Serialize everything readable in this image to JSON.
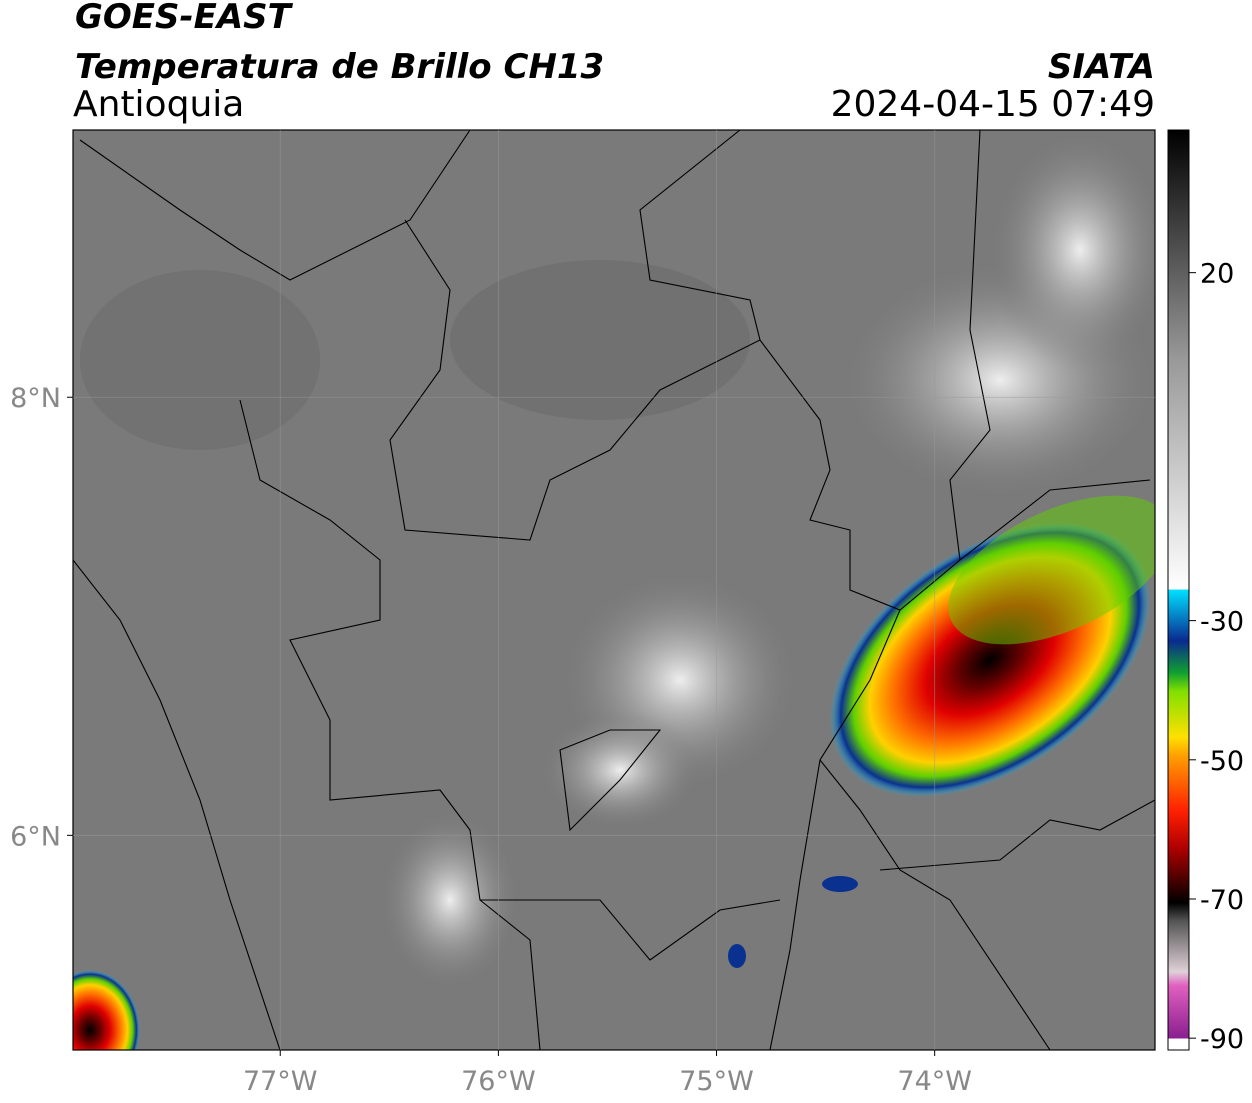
{
  "header": {
    "title": "GOES-EAST",
    "subtitle": "Temperatura de Brillo CH13",
    "region": "Antioquia",
    "source": "SIATA",
    "datetime": "2024-04-15 07:49"
  },
  "map": {
    "xlim": [
      -77.95,
      -72.99
    ],
    "ylim": [
      5.02,
      9.22
    ],
    "xticks": [
      {
        "value": -77,
        "label": "77°W"
      },
      {
        "value": -76,
        "label": "76°W"
      },
      {
        "value": -75,
        "label": "75°W"
      },
      {
        "value": -74,
        "label": "74°W"
      }
    ],
    "yticks": [
      {
        "value": 6,
        "label": "6°N"
      },
      {
        "value": 8,
        "label": "8°N"
      }
    ]
  },
  "colorbar": {
    "lim": [
      -91.7,
      40.5
    ],
    "ticks": [
      20,
      -30,
      -50,
      -70,
      -90
    ]
  }
}
